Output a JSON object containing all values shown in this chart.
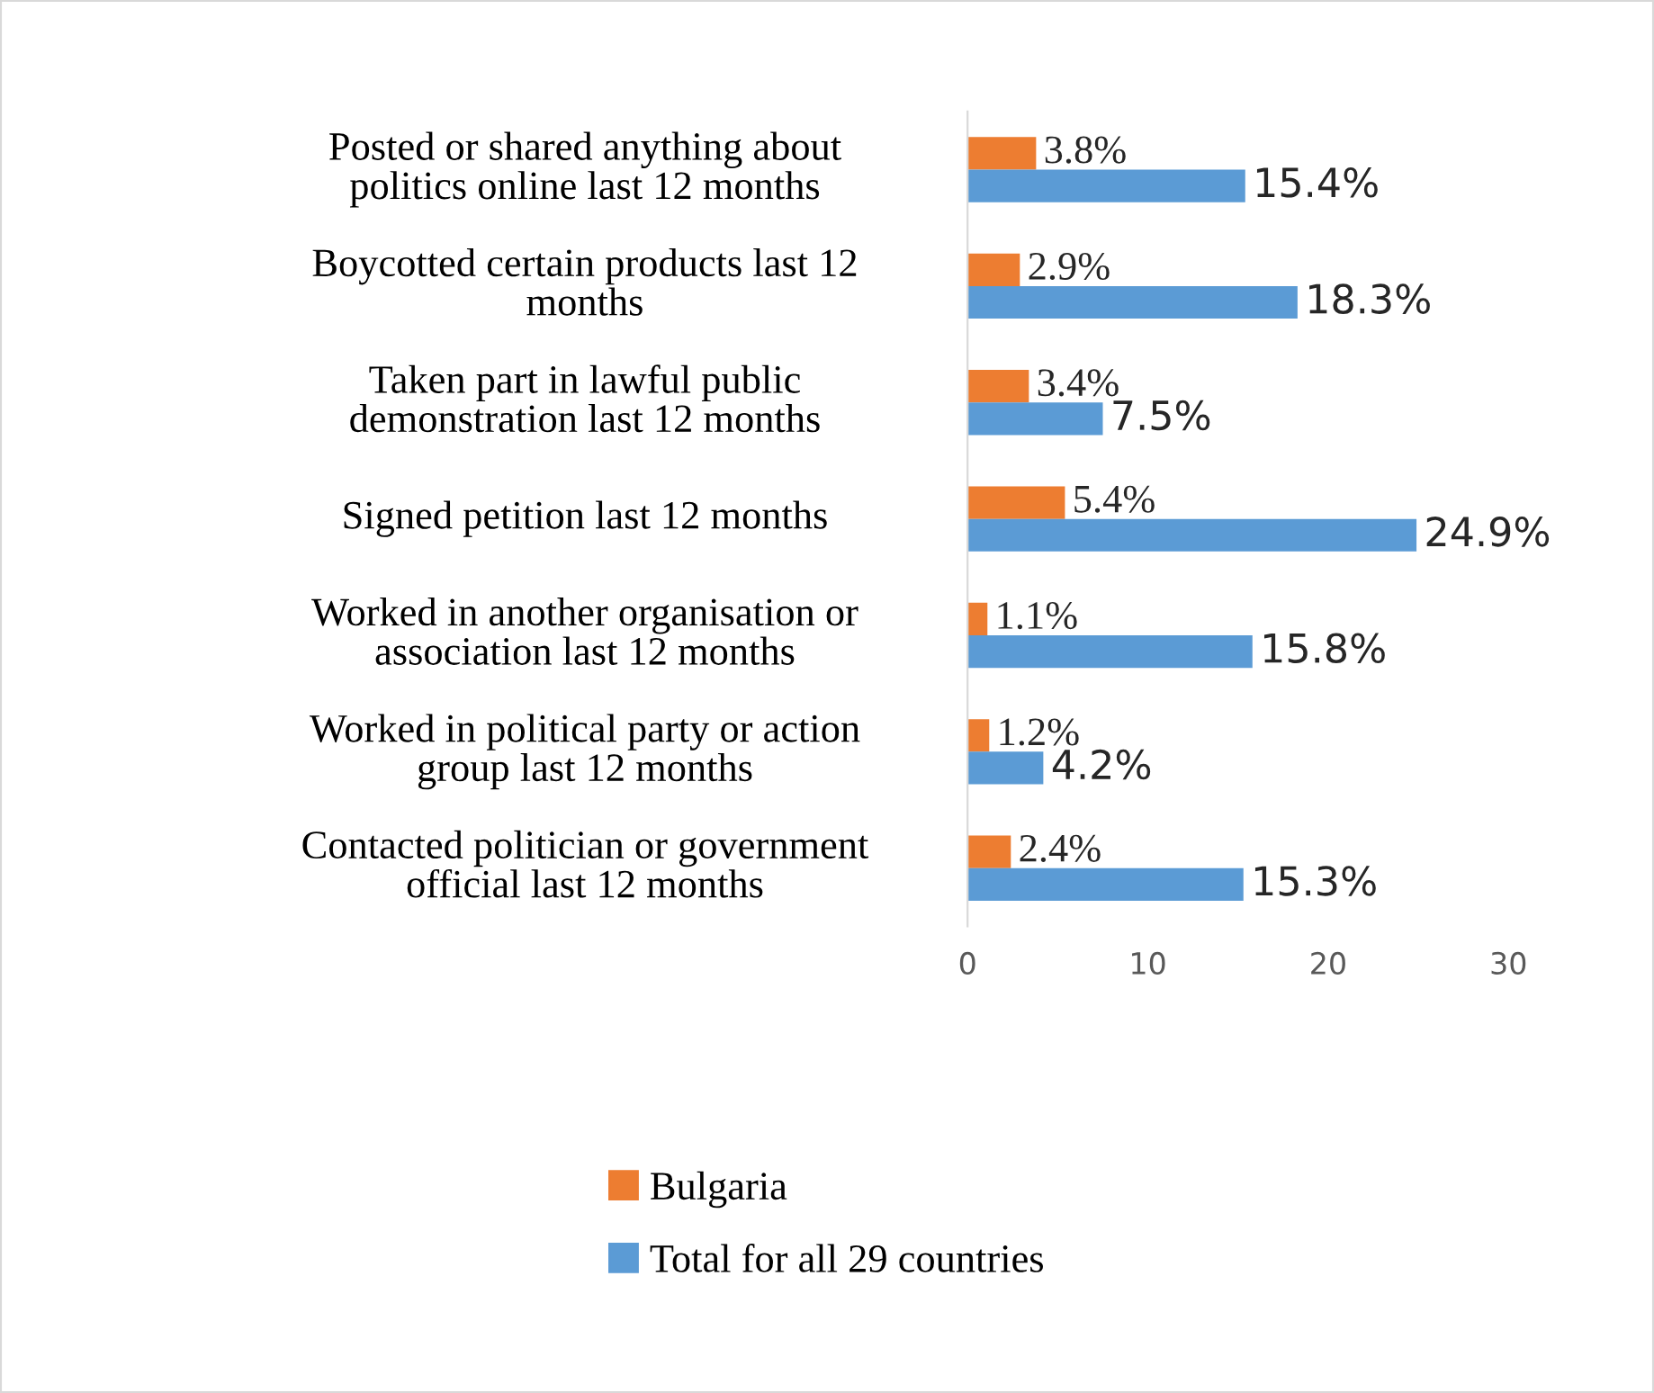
{
  "chart_data": {
    "type": "bar",
    "orientation": "horizontal",
    "categories": [
      "Posted or shared anything about\npolitics online last 12 months",
      "Boycotted certain products last 12\nmonths",
      "Taken part in lawful public\ndemonstration last 12 months",
      "Signed petition last 12 months",
      "Worked in another organisation or\nassociation last 12 months",
      "Worked in political party or action\ngroup last 12 months",
      "Contacted politician or government\nofficial last 12 months"
    ],
    "series": [
      {
        "name": "Bulgaria",
        "color": "#ed7d31",
        "values": [
          3.8,
          2.9,
          3.4,
          5.4,
          1.1,
          1.2,
          2.4
        ],
        "value_labels": [
          "3.8%",
          "2.9%",
          "3.4%",
          "5.4%",
          "1.1%",
          "1.2%",
          "2.4%"
        ]
      },
      {
        "name": "Total for all 29 countries",
        "color": "#5b9bd5",
        "values": [
          15.4,
          18.3,
          7.5,
          24.9,
          15.8,
          4.2,
          15.3
        ],
        "value_labels": [
          "15.4%",
          "18.3%",
          "7.5%",
          "24.9%",
          "15.8%",
          "4.2%",
          "15.3%"
        ]
      }
    ],
    "xlim": [
      0,
      30
    ],
    "xticks": [
      0,
      10,
      20,
      30
    ],
    "grid": false,
    "legend": "bottom"
  }
}
